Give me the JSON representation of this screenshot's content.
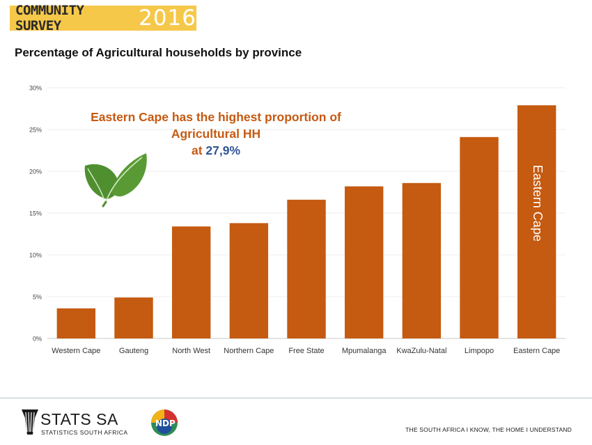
{
  "header": {
    "banner_text": "COMMUNITY SURVEY",
    "banner_year": "2016"
  },
  "callout": {
    "line1": "Eastern  Cape  has the highest proportion of",
    "line2": "Agricultural HH",
    "line3_prefix": "at ",
    "line3_value": "27,9%"
  },
  "footer": {
    "org_name": "STATS SA",
    "org_sub": "STATISTICS SOUTH AFRICA",
    "ndp_label": "NDP",
    "tagline": "THE SOUTH AFRICA I KNOW, THE HOME I UNDERSTAND"
  },
  "colors": {
    "bar": "#c55a11",
    "banner": "#f6c84a",
    "callout_text": "#c55a11",
    "callout_value": "#2f5597",
    "leaf": "#4f8f30"
  },
  "icons": [
    "leaf-icon",
    "stats-sa-logo-icon",
    "ndp-logo-icon"
  ],
  "chart_data": {
    "type": "bar",
    "title": "Percentage of Agricultural households by province",
    "categories": [
      "Western Cape",
      "Gauteng",
      "North West",
      "Northern Cape",
      "Free State",
      "Mpumalanga",
      "KwaZulu-Natal",
      "Limpopo",
      "Eastern Cape"
    ],
    "values": [
      3.6,
      4.9,
      13.4,
      13.8,
      16.6,
      18.2,
      18.6,
      24.1,
      27.9
    ],
    "ylim": [
      0,
      30
    ],
    "yticks": [
      0,
      5,
      10,
      15,
      20,
      25,
      30
    ],
    "ytick_labels": [
      "0%",
      "5%",
      "10%",
      "15%",
      "20%",
      "25%",
      "30%"
    ],
    "xlabel": "",
    "ylabel": "",
    "grid": true,
    "bar_annotation": {
      "category": "Eastern Cape",
      "text": "Eastern Cape",
      "orientation": "vertical"
    }
  }
}
